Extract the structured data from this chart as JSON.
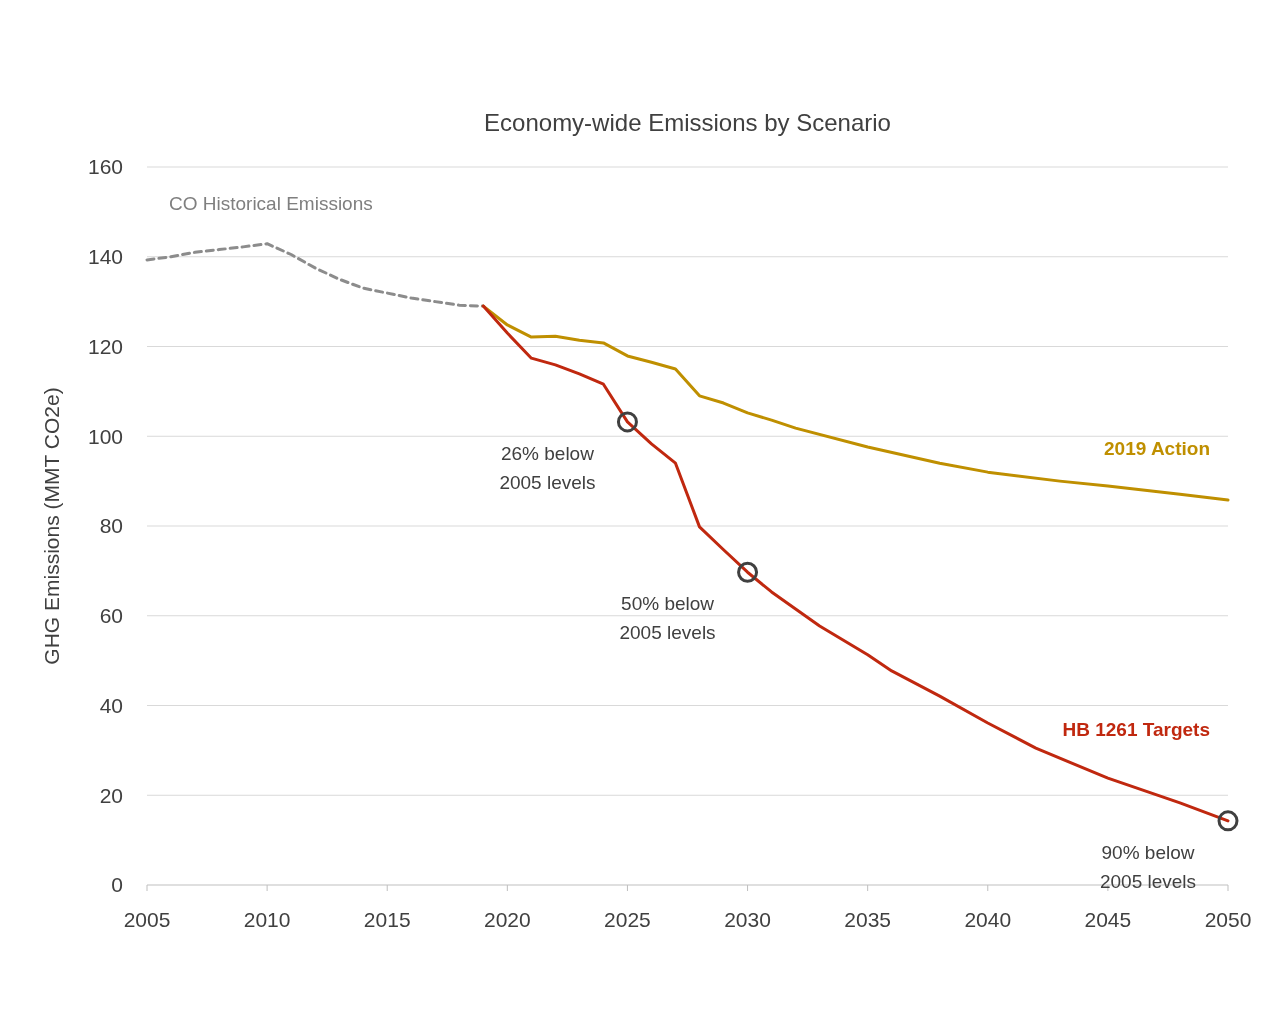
{
  "chart_data": {
    "type": "line",
    "title": "Economy-wide Emissions by Scenario",
    "ylabel": "GHG Emissions (MMT CO2e)",
    "xlim": [
      2005,
      2050
    ],
    "xticks": [
      2005,
      2010,
      2015,
      2020,
      2025,
      2030,
      2035,
      2040,
      2045,
      2050
    ],
    "ylim": [
      0,
      160
    ],
    "yticks": [
      0,
      20,
      40,
      60,
      80,
      100,
      120,
      140,
      160
    ],
    "grid": "y",
    "legend": false,
    "marker": "none",
    "series": [
      {
        "name": "CO Historical Emissions",
        "color": "#8c8c8c",
        "line_style": "dashed",
        "x": [
          2005,
          2006,
          2007,
          2008,
          2009,
          2010,
          2011,
          2012,
          2013,
          2014,
          2015,
          2016,
          2017,
          2018,
          2019
        ],
        "values": [
          139.3,
          140,
          141,
          141.6,
          142.2,
          142.9,
          140.5,
          137.5,
          135,
          133,
          131.9,
          130.8,
          130,
          129.2,
          129
        ]
      },
      {
        "name": "2019 Action",
        "color": "#bf8f00",
        "line_style": "solid",
        "x": [
          2019,
          2020,
          2021,
          2022,
          2023,
          2024,
          2025,
          2026,
          2027,
          2028,
          2029,
          2030,
          2031,
          2032,
          2035,
          2038,
          2040,
          2043,
          2045,
          2048,
          2050
        ],
        "values": [
          129,
          124.8,
          122.1,
          122.3,
          121.4,
          120.8,
          117.9,
          116.5,
          115,
          109,
          107.4,
          105.2,
          103.6,
          101.8,
          97.6,
          94,
          92,
          90,
          88.9,
          87.1,
          85.8
        ]
      },
      {
        "name": "HB 1261 Targets",
        "color": "#c0280f",
        "line_style": "solid",
        "x": [
          2019,
          2020,
          2021,
          2022,
          2023,
          2024,
          2025,
          2026,
          2027,
          2028,
          2029,
          2030,
          2031,
          2032,
          2033,
          2035,
          2036,
          2038,
          2040,
          2042,
          2045,
          2048,
          2050
        ],
        "values": [
          129,
          123,
          117.4,
          115.9,
          113.9,
          111.6,
          103.2,
          98.3,
          94,
          79.8,
          74.7,
          69.7,
          65.3,
          61.5,
          57.7,
          51.3,
          47.7,
          42.1,
          36.1,
          30.5,
          23.8,
          18.3,
          14.3
        ]
      }
    ],
    "annotations": [
      {
        "text": "26% below\n2005 levels",
        "x": 2025,
        "y": 103.2
      },
      {
        "text": "50% below\n2005 levels",
        "x": 2030,
        "y": 69.7
      },
      {
        "text": "90% below\n2005 levels",
        "x": 2050,
        "y": 14.3
      }
    ]
  }
}
